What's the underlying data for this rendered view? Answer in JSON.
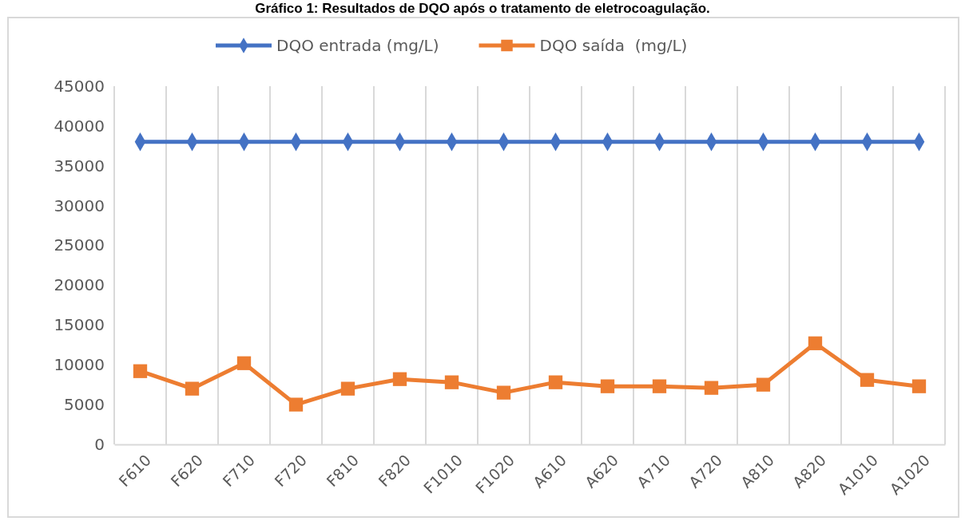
{
  "chart_data": {
    "type": "line",
    "title": "Gráfico 1: Resultados de DQO após o tratamento de eletrocoagulação.",
    "categories": [
      "F610",
      "F620",
      "F710",
      "F720",
      "F810",
      "F820",
      "F1010",
      "F1020",
      "A610",
      "A620",
      "A710",
      "A720",
      "A810",
      "A820",
      "A1010",
      "A1020"
    ],
    "series": [
      {
        "name": "DQO entrada (mg/L)",
        "color": "#4472c4",
        "marker": "diamond",
        "values": [
          38000,
          38000,
          38000,
          38000,
          38000,
          38000,
          38000,
          38000,
          38000,
          38000,
          38000,
          38000,
          38000,
          38000,
          38000,
          38000
        ]
      },
      {
        "name": "DQO saída  (mg/L)",
        "color": "#ed7d31",
        "marker": "square",
        "values": [
          9200,
          7000,
          10200,
          5000,
          7000,
          8200,
          7800,
          6500,
          7800,
          7300,
          7300,
          7100,
          7500,
          12700,
          8100,
          7300
        ]
      }
    ],
    "ylim": [
      0,
      45000
    ],
    "yticks": [
      0,
      5000,
      10000,
      15000,
      20000,
      25000,
      30000,
      35000,
      40000,
      45000
    ],
    "grid": "x",
    "legend": "top",
    "line_style": "solid"
  }
}
